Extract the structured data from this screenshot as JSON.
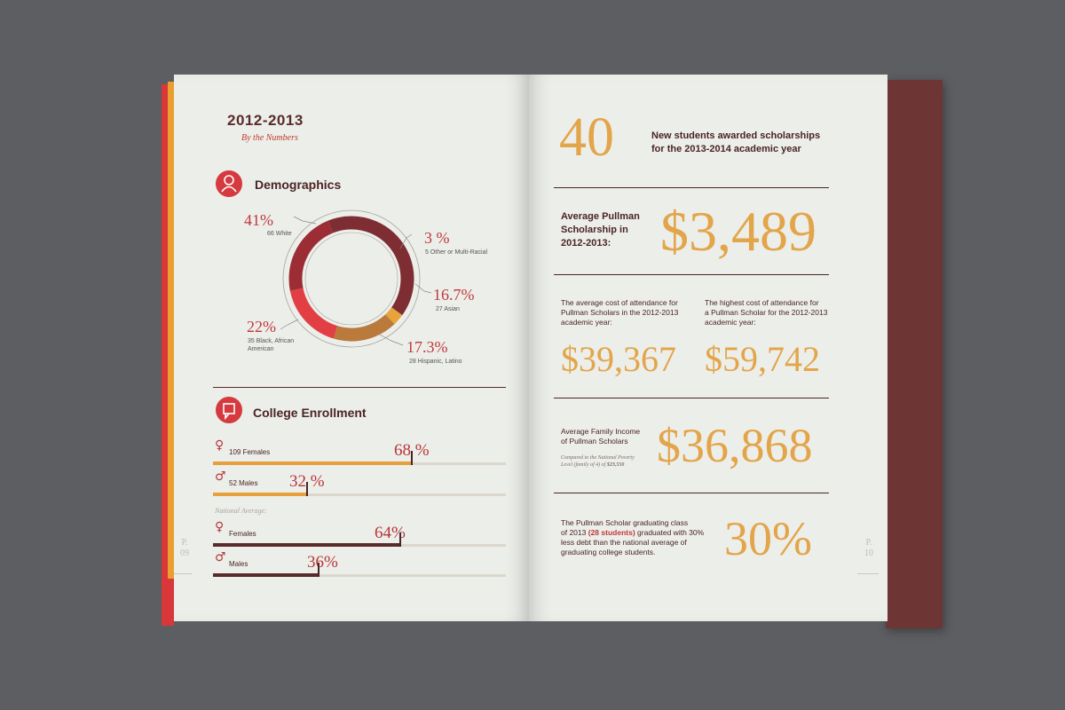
{
  "left_page": {
    "heading": "2012-2013",
    "subheading": "By the Numbers",
    "demographics": {
      "title": "Demographics",
      "icon": "person-icon",
      "segments": [
        {
          "pct": "41%",
          "label": "66 White",
          "value": 41,
          "color": "#7e2e33"
        },
        {
          "pct": "3 %",
          "label": "5 Other or Multi-Racial",
          "value": 3,
          "color": "#e8a43a"
        },
        {
          "pct": "16.7%",
          "label": "27 Asian",
          "value": 16.7,
          "color": "#b97a3c"
        },
        {
          "pct": "17.3%",
          "label": "28 Hispanic, Latino",
          "value": 17.3,
          "color": "#e23f45"
        },
        {
          "pct": "22%",
          "label_line1": "35 Black, African",
          "label_line2": "American",
          "value": 22,
          "color": "#9c2d34"
        }
      ]
    },
    "enrollment": {
      "title": "College Enrollment",
      "icon": "chat-icon",
      "rows": [
        {
          "symbol": "♀",
          "label": "109 Females",
          "pct": "68 %",
          "value": 68,
          "color": "#e7a03a"
        },
        {
          "symbol": "♂",
          "label": "52 Males",
          "pct": "32 %",
          "value": 32,
          "color": "#e7a03a"
        }
      ],
      "national_label": "National Average:",
      "national_rows": [
        {
          "symbol": "♀",
          "label": "Females",
          "pct": "64%",
          "value": 64,
          "color": "#5a2b2b"
        },
        {
          "symbol": "♂",
          "label": "Males",
          "pct": "36%",
          "value": 36,
          "color": "#5a2b2b"
        }
      ]
    },
    "page_label": "P.",
    "page_number": "09"
  },
  "right_page": {
    "new_students": {
      "number": "40",
      "line1": "New students awarded scholarships",
      "line2": "for the 2013-2014 academic year"
    },
    "avg_scholarship": {
      "line1": "Average Pullman",
      "line2": "Scholarship in",
      "line3": "2012-2013:",
      "value": "$3,489"
    },
    "avg_cost": {
      "line1": "The average cost of attendance for",
      "line2": "Pullman Scholars in the 2012-2013",
      "line3": "academic year:",
      "value": "$39,367"
    },
    "high_cost": {
      "line1": "The highest cost of attendance for",
      "line2": "a Pullman Scholar for the 2012-2013",
      "line3": "academic year:",
      "value": "$59,742"
    },
    "family_income": {
      "line1": "Average Family Income",
      "line2": "of Pullman Scholars",
      "note1": "Compared to the National Poverty",
      "note2": "Level (family of 4) of",
      "note_value": "$23,550",
      "value": "$36,868"
    },
    "graduation": {
      "line1": "The Pullman Scholar graduating class",
      "line2a": "of 2013",
      "line2b": "(28 students)",
      "line2c": "graduated with 30%",
      "line3": "less debt than the national average of",
      "line4": "graduating college students.",
      "value": "30%"
    },
    "page_label": "P.",
    "page_number": "10"
  }
}
